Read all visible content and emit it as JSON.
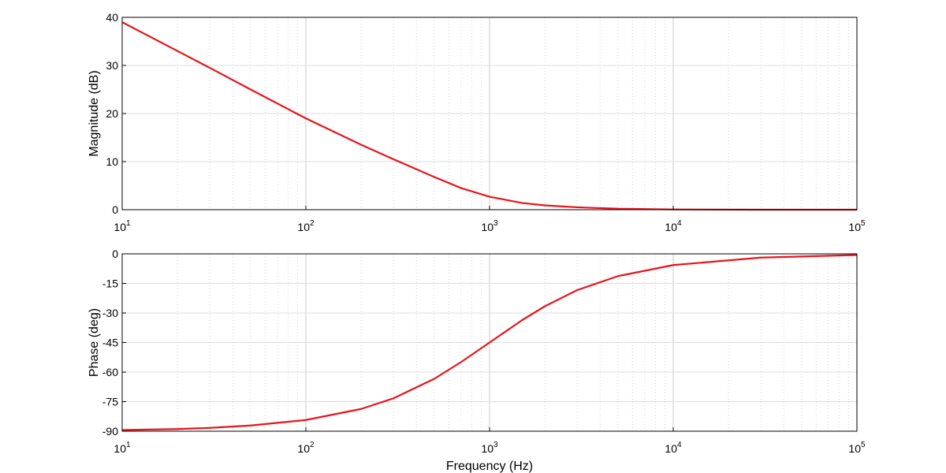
{
  "chart_data": [
    {
      "type": "line",
      "panel": "magnitude",
      "ylabel": "Magnitude (dB)",
      "xlabel": "",
      "xscale": "log",
      "xlim": [
        10,
        100000
      ],
      "ylim": [
        0,
        40
      ],
      "yticks": [
        0,
        10,
        20,
        30,
        40
      ],
      "xticks": [
        {
          "base": "10",
          "exp": "1"
        },
        {
          "base": "10",
          "exp": "2"
        },
        {
          "base": "10",
          "exp": "3"
        },
        {
          "base": "10",
          "exp": "4"
        },
        {
          "base": "10",
          "exp": "5"
        }
      ],
      "grid": true,
      "line_color": "#e8141b",
      "series": [
        {
          "x": [
            10,
            20,
            30,
            50,
            100,
            200,
            300,
            500,
            700,
            1000,
            1500,
            2000,
            3000,
            5000,
            10000,
            30000,
            100000
          ],
          "values": [
            39,
            33,
            29.5,
            25,
            19,
            13.5,
            10.5,
            6.8,
            4.5,
            2.7,
            1.4,
            0.9,
            0.5,
            0.2,
            0.05,
            0,
            0
          ]
        }
      ]
    },
    {
      "type": "line",
      "panel": "phase",
      "ylabel": "Phase (deg)",
      "xlabel": "Frequency (Hz)",
      "xscale": "log",
      "xlim": [
        10,
        100000
      ],
      "ylim": [
        -90,
        0
      ],
      "yticks": [
        -90,
        -75,
        -60,
        -45,
        -30,
        -15,
        0
      ],
      "xticks": [
        {
          "base": "10",
          "exp": "1"
        },
        {
          "base": "10",
          "exp": "2"
        },
        {
          "base": "10",
          "exp": "3"
        },
        {
          "base": "10",
          "exp": "4"
        },
        {
          "base": "10",
          "exp": "5"
        }
      ],
      "grid": true,
      "line_color": "#e8141b",
      "series": [
        {
          "x": [
            10,
            20,
            30,
            50,
            100,
            200,
            300,
            500,
            700,
            1000,
            1500,
            2000,
            3000,
            5000,
            10000,
            30000,
            100000
          ],
          "values": [
            -89.4,
            -88.9,
            -88.3,
            -87.1,
            -84.3,
            -78.7,
            -73.3,
            -63.4,
            -54.9,
            -45,
            -33.7,
            -26.6,
            -18.4,
            -11.3,
            -5.7,
            -1.9,
            -0.6
          ]
        }
      ]
    }
  ]
}
